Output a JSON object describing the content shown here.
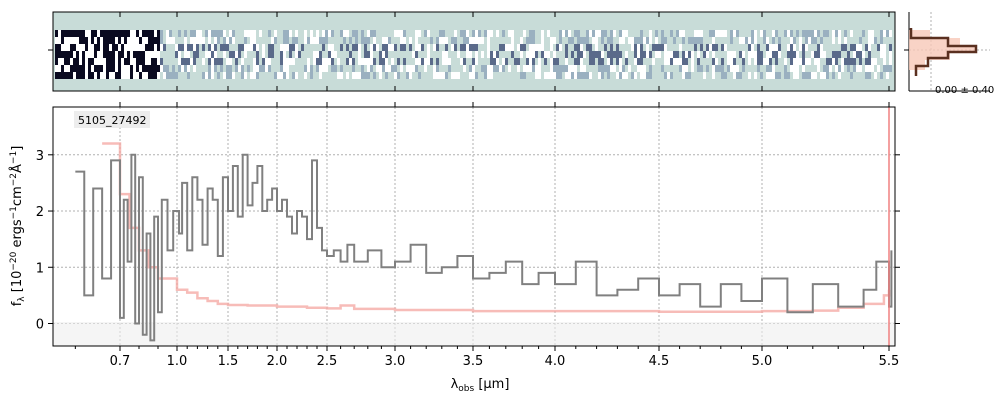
{
  "chart_data": {
    "type": "line",
    "annotation": "5105_27492",
    "xlabel": "λ_obs [μm]",
    "ylabel": "f_λ [10^-20 ergs^-1cm^-2Å^-1]",
    "x_ticks": [
      "0.7",
      "1.0",
      "1.5",
      "2.0",
      "2.5",
      "3.0",
      "3.5",
      "4.0",
      "4.5",
      "5.0",
      "5.5"
    ],
    "y_ticks": [
      "0",
      "1",
      "2",
      "3"
    ],
    "xlim": [
      0.55,
      5.55
    ],
    "ylim": [
      -0.4,
      3.85
    ],
    "x_scale": "sqrt-like (spectral)",
    "grid": true,
    "side_panel_label": "0.00 ± 0.40",
    "colors": {
      "data": "#808080",
      "model": "#f4a6a0",
      "two_d_background": "#c8dcd8",
      "profile": "#5a3020",
      "profile_fill": "#f7c8b8"
    },
    "series": [
      {
        "name": "",
        "points": [
          [
            0.6,
            2.7
          ],
          [
            0.62,
            0.5
          ],
          [
            0.64,
            2.4
          ],
          [
            0.66,
            0.8
          ],
          [
            0.68,
            2.9
          ],
          [
            0.7,
            0.1
          ],
          [
            0.72,
            2.2
          ],
          [
            0.74,
            1.1
          ],
          [
            0.76,
            3.0
          ],
          [
            0.78,
            0.0
          ],
          [
            0.8,
            2.6
          ],
          [
            0.82,
            -0.2
          ],
          [
            0.84,
            1.6
          ],
          [
            0.86,
            -0.3
          ],
          [
            0.88,
            1.9
          ],
          [
            0.9,
            0.2
          ],
          [
            0.92,
            2.2
          ],
          [
            0.95,
            1.3
          ],
          [
            0.98,
            2.0
          ],
          [
            1.02,
            1.6
          ],
          [
            1.05,
            2.5
          ],
          [
            1.1,
            1.3
          ],
          [
            1.15,
            2.6
          ],
          [
            1.2,
            2.2
          ],
          [
            1.25,
            1.4
          ],
          [
            1.3,
            2.4
          ],
          [
            1.35,
            2.2
          ],
          [
            1.4,
            1.2
          ],
          [
            1.45,
            2.6
          ],
          [
            1.5,
            2.0
          ],
          [
            1.55,
            2.8
          ],
          [
            1.6,
            1.9
          ],
          [
            1.65,
            3.0
          ],
          [
            1.7,
            2.1
          ],
          [
            1.75,
            2.5
          ],
          [
            1.8,
            2.8
          ],
          [
            1.85,
            2.0
          ],
          [
            1.9,
            2.2
          ],
          [
            1.95,
            2.4
          ],
          [
            2.0,
            2.0
          ],
          [
            2.05,
            2.2
          ],
          [
            2.1,
            1.9
          ],
          [
            2.15,
            1.6
          ],
          [
            2.2,
            2.0
          ],
          [
            2.25,
            1.9
          ],
          [
            2.3,
            1.5
          ],
          [
            2.35,
            2.9
          ],
          [
            2.4,
            1.7
          ],
          [
            2.45,
            1.3
          ],
          [
            2.5,
            1.2
          ],
          [
            2.55,
            1.3
          ],
          [
            2.6,
            1.1
          ],
          [
            2.65,
            1.4
          ],
          [
            2.7,
            1.1
          ],
          [
            2.8,
            1.3
          ],
          [
            2.9,
            1.0
          ],
          [
            3.0,
            1.1
          ],
          [
            3.1,
            1.4
          ],
          [
            3.2,
            0.9
          ],
          [
            3.3,
            1.0
          ],
          [
            3.4,
            1.2
          ],
          [
            3.5,
            0.8
          ],
          [
            3.6,
            0.9
          ],
          [
            3.7,
            1.1
          ],
          [
            3.8,
            0.7
          ],
          [
            3.9,
            0.9
          ],
          [
            4.0,
            0.7
          ],
          [
            4.1,
            1.1
          ],
          [
            4.2,
            0.5
          ],
          [
            4.3,
            0.6
          ],
          [
            4.4,
            0.8
          ],
          [
            4.5,
            0.5
          ],
          [
            4.6,
            0.7
          ],
          [
            4.7,
            0.3
          ],
          [
            4.8,
            0.7
          ],
          [
            4.9,
            0.4
          ],
          [
            5.0,
            0.8
          ],
          [
            5.1,
            0.2
          ],
          [
            5.2,
            0.7
          ],
          [
            5.3,
            0.3
          ],
          [
            5.4,
            0.6
          ],
          [
            5.45,
            1.1
          ],
          [
            5.5,
            0.3
          ],
          [
            5.52,
            1.3
          ]
        ]
      },
      {
        "name": "",
        "points": [
          [
            0.66,
            3.2
          ],
          [
            0.7,
            2.3
          ],
          [
            0.75,
            1.7
          ],
          [
            0.8,
            1.3
          ],
          [
            0.85,
            1.0
          ],
          [
            0.9,
            0.8
          ],
          [
            1.0,
            0.6
          ],
          [
            1.1,
            0.55
          ],
          [
            1.2,
            0.45
          ],
          [
            1.3,
            0.4
          ],
          [
            1.4,
            0.35
          ],
          [
            1.5,
            0.33
          ],
          [
            1.7,
            0.32
          ],
          [
            2.0,
            0.3
          ],
          [
            2.3,
            0.28
          ],
          [
            2.5,
            0.27
          ],
          [
            2.6,
            0.32
          ],
          [
            2.7,
            0.26
          ],
          [
            3.0,
            0.24
          ],
          [
            3.5,
            0.22
          ],
          [
            4.0,
            0.22
          ],
          [
            4.5,
            0.21
          ],
          [
            5.0,
            0.22
          ],
          [
            5.2,
            0.23
          ],
          [
            5.3,
            0.28
          ],
          [
            5.4,
            0.35
          ],
          [
            5.48,
            0.5
          ],
          [
            5.5,
            0.6
          ]
        ]
      }
    ]
  }
}
